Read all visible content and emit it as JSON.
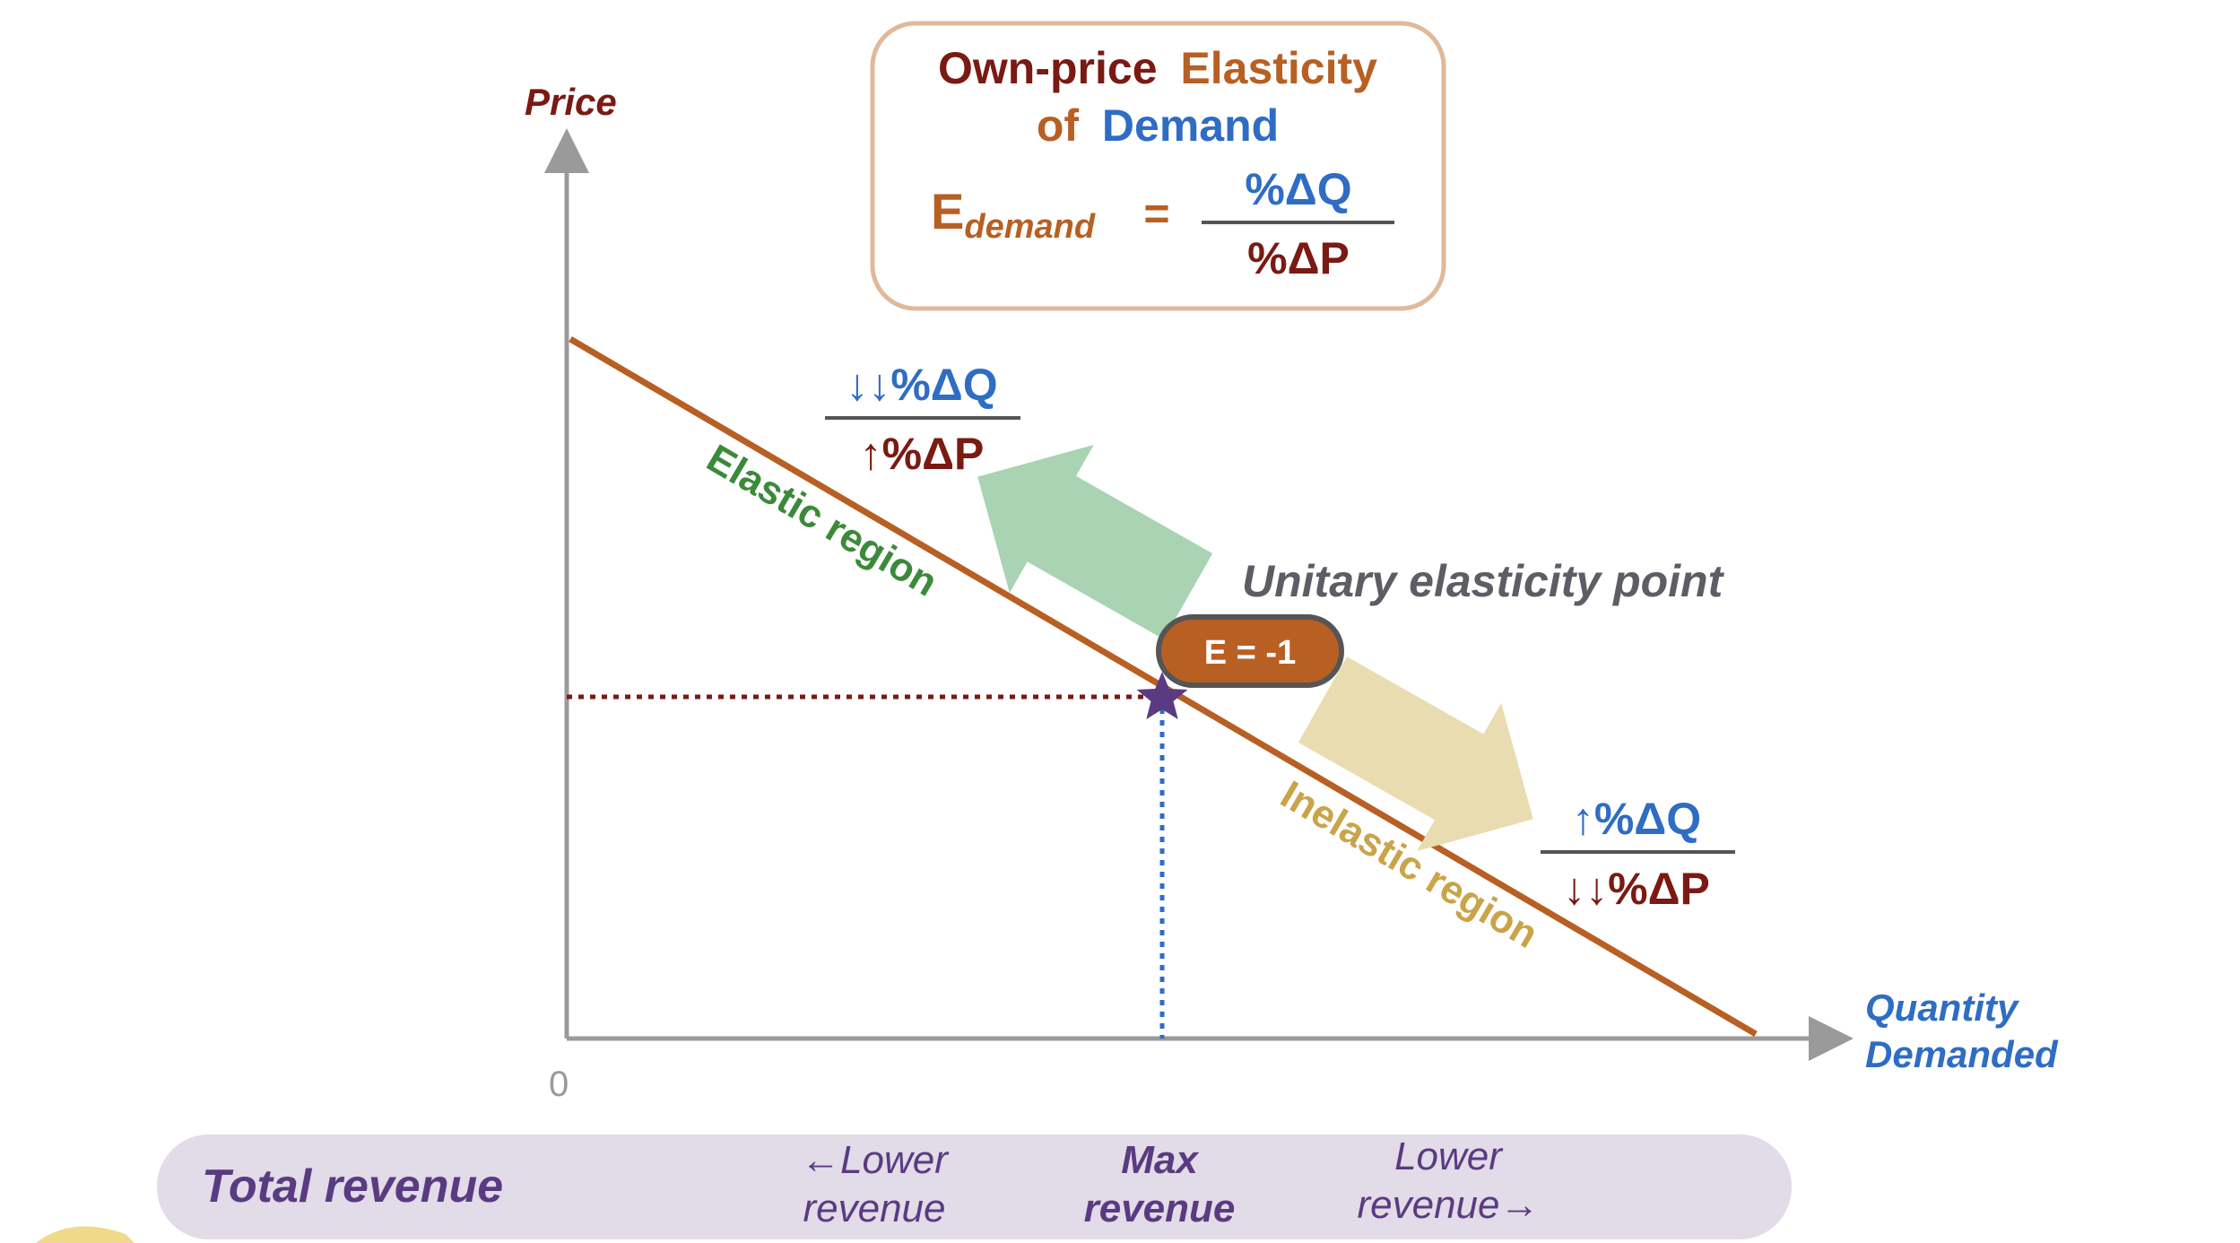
{
  "formula_box": {
    "title_line1_part1": "Own-price",
    "title_line1_part2": "Elasticity",
    "title_line2_part1": "of",
    "title_line2_part2": "Demand",
    "lhs_main": "E",
    "lhs_sub": "demand",
    "equals": "=",
    "numerator": "%ΔQ",
    "denominator": "%ΔP"
  },
  "axes": {
    "y_label": "Price",
    "x_label_line1": "Quantity",
    "x_label_line2": "Demanded",
    "origin_label": "0"
  },
  "elastic": {
    "region_label": "Elastic region",
    "numerator": "↓↓%ΔQ",
    "denominator": "↑%ΔP"
  },
  "inelastic": {
    "region_label": "Inelastic region",
    "numerator": "↑%ΔQ",
    "denominator": "↓↓%ΔP"
  },
  "unitary": {
    "title": "Unitary elasticity point",
    "badge": "E = -1"
  },
  "revenue_bar": {
    "label": "Total revenue",
    "left_line1": "←Lower",
    "left_line2": "revenue",
    "center_line1": "Max",
    "center_line2": "revenue",
    "right_line1": "Lower",
    "right_line2": "revenue→"
  },
  "colors": {
    "dark_red": "#7a1a12",
    "orange_brown": "#b85f24",
    "blue": "#2f6dc4",
    "green": "#3b8a3a",
    "gold": "#c9a448",
    "gray": "#9a9a9a",
    "purple": "#5a3b82",
    "revenue_bg": "#e2dbe8",
    "elastic_arrow": "#a9d3b3",
    "inelastic_arrow": "#e8dcb0",
    "box_border": "#e2b89a"
  }
}
